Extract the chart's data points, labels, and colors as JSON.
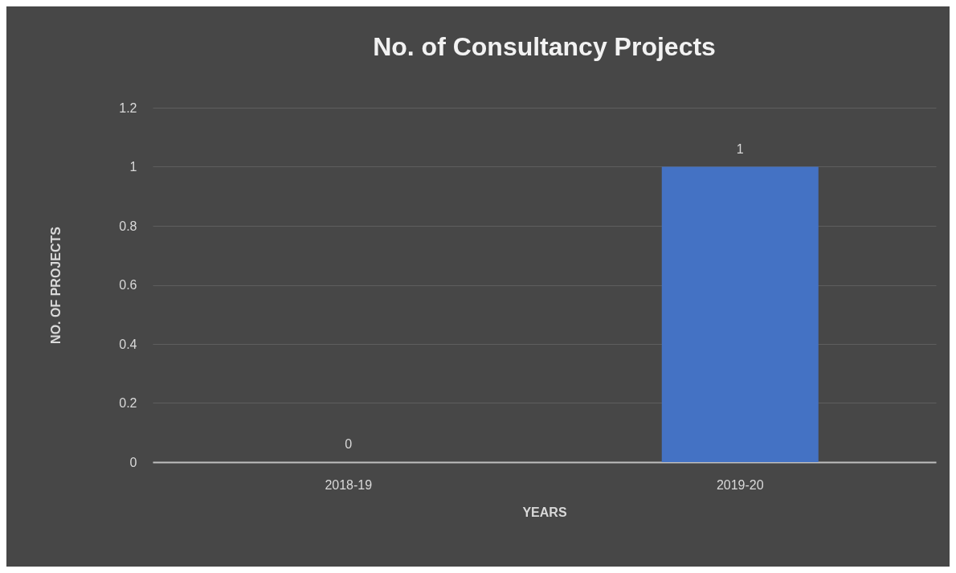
{
  "chart_data": {
    "type": "bar",
    "title": "No. of Consultancy Projects",
    "xlabel": "YEARS",
    "ylabel": "NO. OF PROJECTS",
    "categories": [
      "2018-19",
      "2019-20"
    ],
    "values": [
      0,
      1
    ],
    "color": "#4472c4",
    "ylim": [
      0,
      1.2
    ],
    "yticks": [
      0,
      0.2,
      0.4,
      0.6,
      0.8,
      1,
      1.2
    ],
    "grid": "y",
    "data_labels": true
  }
}
